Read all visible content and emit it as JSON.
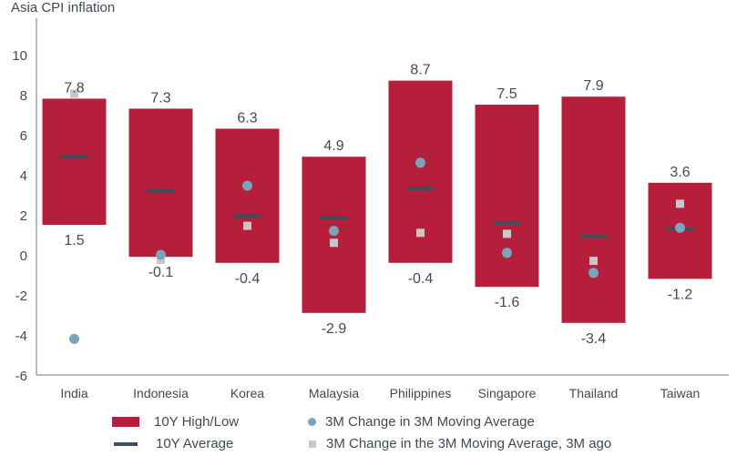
{
  "colors": {
    "range": "#b51f3b",
    "average": "#3f4e5c",
    "current": "#7ba3bc",
    "previous": "#c8c8c8",
    "axis": "#9aa3ab",
    "text": "#3e4a57"
  },
  "chart_data": {
    "type": "floating-bar-with-markers",
    "title": "Asia CPI inflation",
    "xlabel": "",
    "ylabel": "",
    "ylim": [
      -6,
      10
    ],
    "yticks": [
      10,
      8,
      6,
      4,
      2,
      0,
      -2,
      -4,
      -6
    ],
    "grid": false,
    "legend_position": "bottom",
    "categories": [
      "India",
      "Indonesia",
      "Korea",
      "Malaysia",
      "Philippines",
      "Singapore",
      "Thailand",
      "Taiwan"
    ],
    "series": [
      {
        "name": "10Y High",
        "values": [
          7.8,
          7.3,
          6.3,
          4.9,
          8.7,
          7.5,
          7.9,
          3.6
        ]
      },
      {
        "name": "10Y Low",
        "values": [
          1.5,
          -0.1,
          -0.4,
          -2.9,
          -0.4,
          -1.6,
          -3.4,
          -1.2
        ]
      },
      {
        "name": "10Y Average",
        "values": [
          4.9,
          3.2,
          1.95,
          1.85,
          3.3,
          1.6,
          0.95,
          1.3
        ]
      },
      {
        "name": "3M Change in 3M Moving Average",
        "values": [
          -4.2,
          0.0,
          3.45,
          1.2,
          4.6,
          0.1,
          -0.9,
          1.35
        ]
      },
      {
        "name": "3M Change in the 3M Moving Average, 3M ago",
        "values": [
          8.05,
          -0.25,
          1.45,
          0.6,
          1.1,
          1.05,
          -0.3,
          2.55
        ]
      }
    ],
    "high_labels": [
      "7.8",
      "7.3",
      "6.3",
      "4.9",
      "8.7",
      "7.5",
      "7.9",
      "3.6"
    ],
    "low_labels": [
      "1.5",
      "-0.1",
      "-0.4",
      "-2.9",
      "-0.4",
      "-1.6",
      "-3.4",
      "-1.2"
    ]
  },
  "legend": [
    {
      "label": "10Y High/Low",
      "kind": "box"
    },
    {
      "label": "10Y Average",
      "kind": "line"
    },
    {
      "label": "3M Change in 3M Moving Average",
      "kind": "dot"
    },
    {
      "label": "3M Change in the 3M Moving Average, 3M ago",
      "kind": "square"
    }
  ]
}
